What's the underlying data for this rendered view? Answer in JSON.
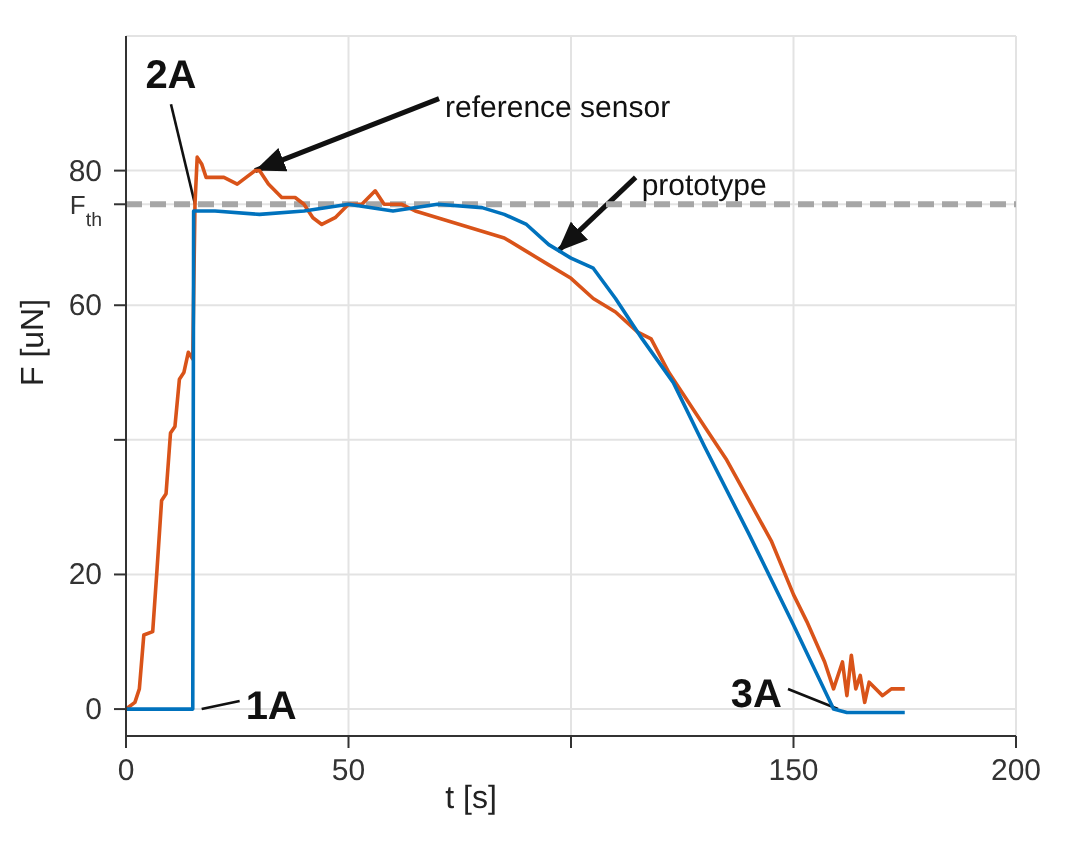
{
  "chart_data": {
    "type": "line",
    "xlabel": "t [s]",
    "ylabel": "F [uN]",
    "xlim": [
      0,
      200
    ],
    "xticks": [
      0,
      50,
      {
        "value": 100,
        "label": null
      },
      150,
      200
    ],
    "ylim": [
      -4,
      100
    ],
    "yticks": [
      0,
      20,
      {
        "value": 40,
        "label": null
      },
      60,
      {
        "value": 75,
        "label": "F$_{th}$"
      },
      80
    ],
    "grid": true,
    "marker": "none",
    "ref_lines": [
      {
        "axis": "y",
        "value": 75,
        "label": null,
        "color": "#a6a6a6",
        "line_style": "dashed"
      }
    ],
    "annotations": [
      {
        "text": "2A",
        "x": 15.5,
        "y": 75
      },
      {
        "text": "reference sensor",
        "x": 29,
        "y": 80
      },
      {
        "text": "prototype",
        "x": 97,
        "y": 68
      },
      {
        "text": "1A",
        "x": 17,
        "y": 0
      },
      {
        "text": "3A",
        "x": 160,
        "y": 0
      }
    ],
    "series": [
      {
        "color": "#d95319",
        "x": [
          0,
          2,
          3,
          4,
          6,
          7,
          8,
          9,
          10,
          11,
          12,
          13,
          14,
          15,
          15.5,
          16,
          17,
          18,
          22,
          25,
          27,
          29,
          30,
          32,
          35,
          38,
          40,
          42,
          44,
          47,
          50,
          53,
          56,
          58,
          62,
          65,
          70,
          75,
          80,
          85,
          90,
          95,
          100,
          105,
          110,
          115,
          118,
          122,
          126,
          130,
          135,
          140,
          145,
          150,
          153,
          157,
          159,
          161,
          162,
          163,
          164,
          165,
          166,
          167,
          170,
          172,
          175
        ],
        "values": [
          0,
          1,
          3,
          11,
          11.5,
          21,
          31,
          32,
          41,
          42,
          49,
          50,
          53,
          52,
          75,
          82,
          81,
          79,
          79,
          78,
          79,
          80,
          80,
          78,
          76,
          76,
          75,
          73,
          72,
          73,
          75,
          75,
          77,
          75,
          75,
          74,
          73,
          72,
          71,
          70,
          68,
          66,
          64,
          61,
          59,
          56,
          55,
          50,
          46,
          42,
          37,
          31,
          25,
          17,
          13,
          7,
          3,
          7,
          2,
          8,
          3,
          5,
          1,
          4,
          2,
          3,
          3
        ]
      },
      {
        "color": "#0072bd",
        "x": [
          0,
          15,
          15.2,
          20,
          30,
          40,
          50,
          60,
          70,
          80,
          85,
          90,
          95,
          100,
          105,
          110,
          116,
          123,
          130,
          140,
          150,
          159,
          162,
          175
        ],
        "values": [
          0,
          0,
          74,
          74,
          73.5,
          74,
          75,
          74,
          75,
          74.5,
          73.5,
          72,
          69,
          67,
          65.5,
          61,
          55,
          48.5,
          39,
          26,
          12.5,
          0,
          -0.5,
          -0.5
        ]
      }
    ]
  }
}
